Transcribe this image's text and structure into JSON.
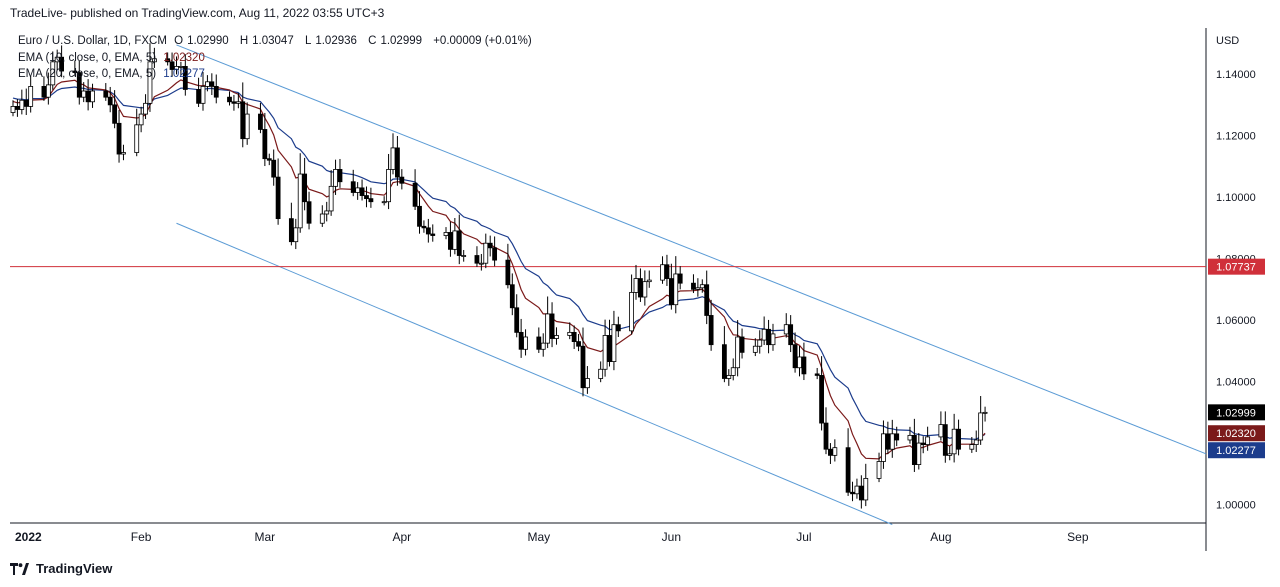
{
  "header": {
    "publish_note": "TradeLive- published on TradingView.com, Aug 11, 2022 03:55 UTC+3"
  },
  "legend": {
    "symbol": "Euro / U.S. Dollar, 1D, FXCM",
    "o_label": "O",
    "o_value": "1.02990",
    "h_label": "H",
    "h_value": "1.03047",
    "l_label": "L",
    "l_value": "1.02936",
    "c_label": "C",
    "c_value": "1.02999",
    "change": "+0.00009 (+0.01%)",
    "ema1_label": "EMA (10, close, 0, EMA, 5)",
    "ema1_value": "1.02320",
    "ema2_label": "EMA (20, close, 0, EMA, 5)",
    "ema2_value": "1.02277"
  },
  "footer": {
    "logo_text": "TradingView"
  },
  "colors": {
    "up": "#ffffff",
    "down": "#000000",
    "outline": "#000000",
    "ema10": "#7b1a1a",
    "ema20": "#1c3c8c",
    "channel": "#5b9bd5",
    "hline": "#d0303a",
    "grid_axis": "#131722"
  },
  "chart_data": {
    "type": "candlestick",
    "symbol": "EUR/USD",
    "interval": "1D",
    "currency": "USD",
    "ylim": [
      0.994,
      1.155
    ],
    "y_ticks": [
      "1.14000",
      "1.12000",
      "1.10000",
      "1.08000",
      "1.06000",
      "1.04000",
      "1.00000"
    ],
    "x_ticks": [
      "2022",
      "Feb",
      "Mar",
      "Apr",
      "May",
      "Jun",
      "Jul",
      "Aug",
      "Sep"
    ],
    "x_tick_dates": [
      "2022-01-03",
      "2022-02-01",
      "2022-03-01",
      "2022-04-01",
      "2022-05-02",
      "2022-06-01",
      "2022-07-01",
      "2022-08-01",
      "2022-09-01"
    ],
    "x_range": [
      "2022-01-03",
      "2022-09-30"
    ],
    "hline": 1.07737,
    "price_labels": [
      {
        "name": "last",
        "value": "1.02999"
      },
      {
        "name": "ema10",
        "value": "1.02320"
      },
      {
        "name": "ema20",
        "value": "1.02277"
      },
      {
        "name": "hline",
        "value": "1.07737"
      }
    ],
    "channel_lines": [
      {
        "name": "upper",
        "points": [
          [
            "2022-02-09",
            1.1495
          ],
          [
            "2022-09-30",
            1.0165
          ]
        ]
      },
      {
        "name": "lower",
        "points": [
          [
            "2022-02-09",
            1.0915
          ],
          [
            "2022-07-21",
            0.9935
          ]
        ]
      }
    ],
    "closes": [
      [
        "2022-01-03",
        1.1295
      ],
      [
        "2022-01-04",
        1.1285
      ],
      [
        "2022-01-05",
        1.1315
      ],
      [
        "2022-01-06",
        1.1295
      ],
      [
        "2022-01-07",
        1.136
      ],
      [
        "2022-01-10",
        1.1325
      ],
      [
        "2022-01-11",
        1.1365
      ],
      [
        "2022-01-12",
        1.144
      ],
      [
        "2022-01-13",
        1.1455
      ],
      [
        "2022-01-14",
        1.141
      ],
      [
        "2022-01-17",
        1.1405
      ],
      [
        "2022-01-18",
        1.1325
      ],
      [
        "2022-01-19",
        1.1345
      ],
      [
        "2022-01-20",
        1.131
      ],
      [
        "2022-01-21",
        1.1345
      ],
      [
        "2022-01-24",
        1.1325
      ],
      [
        "2022-01-25",
        1.13
      ],
      [
        "2022-01-26",
        1.124
      ],
      [
        "2022-01-27",
        1.114
      ],
      [
        "2022-01-28",
        1.1145
      ],
      [
        "2022-01-31",
        1.1235
      ],
      [
        "2022-02-01",
        1.127
      ],
      [
        "2022-02-02",
        1.1305
      ],
      [
        "2022-02-03",
        1.144
      ],
      [
        "2022-02-04",
        1.145
      ],
      [
        "2022-02-07",
        1.144
      ],
      [
        "2022-02-08",
        1.1415
      ],
      [
        "2022-02-09",
        1.1425
      ],
      [
        "2022-02-10",
        1.1425
      ],
      [
        "2022-02-11",
        1.135
      ],
      [
        "2022-02-14",
        1.1305
      ],
      [
        "2022-02-15",
        1.136
      ],
      [
        "2022-02-16",
        1.1375
      ],
      [
        "2022-02-17",
        1.136
      ],
      [
        "2022-02-18",
        1.1325
      ],
      [
        "2022-02-21",
        1.131
      ],
      [
        "2022-02-22",
        1.1305
      ],
      [
        "2022-02-23",
        1.131
      ],
      [
        "2022-02-24",
        1.119
      ],
      [
        "2022-02-25",
        1.127
      ],
      [
        "2022-02-28",
        1.122
      ],
      [
        "2022-03-01",
        1.1125
      ],
      [
        "2022-03-02",
        1.112
      ],
      [
        "2022-03-03",
        1.1065
      ],
      [
        "2022-03-04",
        1.093
      ],
      [
        "2022-03-07",
        1.0855
      ],
      [
        "2022-03-08",
        1.09
      ],
      [
        "2022-03-09",
        1.1075
      ],
      [
        "2022-03-10",
        1.0985
      ],
      [
        "2022-03-11",
        1.0915
      ],
      [
        "2022-03-14",
        1.0945
      ],
      [
        "2022-03-15",
        1.0955
      ],
      [
        "2022-03-16",
        1.1035
      ],
      [
        "2022-03-17",
        1.109
      ],
      [
        "2022-03-18",
        1.105
      ],
      [
        "2022-03-21",
        1.1015
      ],
      [
        "2022-03-22",
        1.103
      ],
      [
        "2022-03-23",
        1.1005
      ],
      [
        "2022-03-24",
        1.0995
      ],
      [
        "2022-03-25",
        1.0985
      ],
      [
        "2022-03-28",
        1.0985
      ],
      [
        "2022-03-29",
        1.109
      ],
      [
        "2022-03-30",
        1.116
      ],
      [
        "2022-03-31",
        1.1065
      ],
      [
        "2022-04-01",
        1.1045
      ],
      [
        "2022-04-04",
        1.097
      ],
      [
        "2022-04-05",
        1.0905
      ],
      [
        "2022-04-06",
        1.09
      ],
      [
        "2022-04-07",
        1.088
      ],
      [
        "2022-04-08",
        1.0875
      ],
      [
        "2022-04-11",
        1.0885
      ],
      [
        "2022-04-12",
        1.083
      ],
      [
        "2022-04-13",
        1.089
      ],
      [
        "2022-04-14",
        1.081
      ],
      [
        "2022-04-15",
        1.081
      ],
      [
        "2022-04-18",
        1.0785
      ],
      [
        "2022-04-19",
        1.0785
      ],
      [
        "2022-04-20",
        1.085
      ],
      [
        "2022-04-21",
        1.0835
      ],
      [
        "2022-04-22",
        1.0795
      ],
      [
        "2022-04-25",
        1.0715
      ],
      [
        "2022-04-26",
        1.064
      ],
      [
        "2022-04-27",
        1.056
      ],
      [
        "2022-04-28",
        1.0505
      ],
      [
        "2022-04-29",
        1.0545
      ],
      [
        "2022-05-02",
        1.0505
      ],
      [
        "2022-05-03",
        1.0525
      ],
      [
        "2022-05-04",
        1.062
      ],
      [
        "2022-05-05",
        1.054
      ],
      [
        "2022-05-06",
        1.055
      ],
      [
        "2022-05-09",
        1.056
      ],
      [
        "2022-05-10",
        1.053
      ],
      [
        "2022-05-11",
        1.0515
      ],
      [
        "2022-05-12",
        1.038
      ],
      [
        "2022-05-13",
        1.041
      ],
      [
        "2022-05-16",
        1.044
      ],
      [
        "2022-05-17",
        1.055
      ],
      [
        "2022-05-18",
        1.0465
      ],
      [
        "2022-05-19",
        1.0585
      ],
      [
        "2022-05-20",
        1.0565
      ],
      [
        "2022-05-23",
        1.069
      ],
      [
        "2022-05-24",
        1.0735
      ],
      [
        "2022-05-25",
        1.0675
      ],
      [
        "2022-05-26",
        1.0725
      ],
      [
        "2022-05-27",
        1.073
      ],
      [
        "2022-05-30",
        1.078
      ],
      [
        "2022-05-31",
        1.0735
      ],
      [
        "2022-06-01",
        1.065
      ],
      [
        "2022-06-02",
        1.075
      ],
      [
        "2022-06-03",
        1.072
      ],
      [
        "2022-06-06",
        1.07
      ],
      [
        "2022-06-07",
        1.0705
      ],
      [
        "2022-06-08",
        1.0715
      ],
      [
        "2022-06-09",
        1.0615
      ],
      [
        "2022-06-10",
        1.052
      ],
      [
        "2022-06-13",
        1.041
      ],
      [
        "2022-06-14",
        1.042
      ],
      [
        "2022-06-15",
        1.0445
      ],
      [
        "2022-06-16",
        1.0545
      ],
      [
        "2022-06-17",
        1.0495
      ],
      [
        "2022-06-20",
        1.0515
      ],
      [
        "2022-06-21",
        1.0535
      ],
      [
        "2022-06-22",
        1.057
      ],
      [
        "2022-06-23",
        1.052
      ],
      [
        "2022-06-24",
        1.0555
      ],
      [
        "2022-06-27",
        1.0585
      ],
      [
        "2022-06-28",
        1.052
      ],
      [
        "2022-06-29",
        1.0445
      ],
      [
        "2022-06-30",
        1.048
      ],
      [
        "2022-07-01",
        1.0425
      ],
      [
        "2022-07-04",
        1.042
      ],
      [
        "2022-07-05",
        1.0265
      ],
      [
        "2022-07-06",
        1.018
      ],
      [
        "2022-07-07",
        1.016
      ],
      [
        "2022-07-08",
        1.0185
      ],
      [
        "2022-07-11",
        1.004
      ],
      [
        "2022-07-12",
        1.0035
      ],
      [
        "2022-07-13",
        1.006
      ],
      [
        "2022-07-14",
        1.0015
      ],
      [
        "2022-07-15",
        1.0085
      ],
      [
        "2022-07-18",
        1.014
      ],
      [
        "2022-07-19",
        1.023
      ],
      [
        "2022-07-20",
        1.018
      ],
      [
        "2022-07-21",
        1.023
      ],
      [
        "2022-07-22",
        1.021
      ],
      [
        "2022-07-25",
        1.0225
      ],
      [
        "2022-07-26",
        1.013
      ],
      [
        "2022-07-27",
        1.02
      ],
      [
        "2022-07-28",
        1.0195
      ],
      [
        "2022-07-29",
        1.022
      ],
      [
        "2022-08-01",
        1.026
      ],
      [
        "2022-08-02",
        1.016
      ],
      [
        "2022-08-03",
        1.0165
      ],
      [
        "2022-08-04",
        1.0245
      ],
      [
        "2022-08-05",
        1.018
      ],
      [
        "2022-08-08",
        1.0195
      ],
      [
        "2022-08-09",
        1.021
      ],
      [
        "2022-08-10",
        1.0298
      ],
      [
        "2022-08-11",
        1.02999
      ]
    ]
  }
}
